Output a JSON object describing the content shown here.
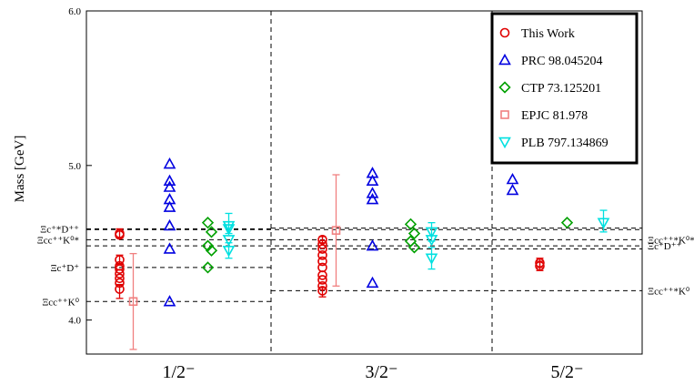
{
  "chart_data": {
    "type": "scatter",
    "ylabel": "Mass [GeV]",
    "ylim": [
      3.78,
      6.0
    ],
    "yticks": [
      {
        "value": 4.0,
        "label": "4.0"
      },
      {
        "value": 5.0,
        "label": "5.0"
      },
      {
        "value": 6.0,
        "label": "6.0"
      }
    ],
    "categories": [
      "1/2⁻",
      "3/2⁻",
      "5/2⁻"
    ],
    "legend": {
      "position": "top-right"
    },
    "thresholds": [
      {
        "value": 4.59,
        "categories": [
          0
        ],
        "label": "Ξc⁺*D⁺⁺",
        "side": "left"
      },
      {
        "value": 4.52,
        "categories": [
          0
        ],
        "label": "Ξcc⁺⁺K⁰*",
        "side": "left"
      },
      {
        "value": 4.34,
        "categories": [
          0
        ],
        "label": "Ξc⁺D⁺",
        "side": "left"
      },
      {
        "value": 4.12,
        "categories": [
          0
        ],
        "label": "Ξcc⁺⁺K⁰",
        "side": "left"
      },
      {
        "value": 4.595,
        "categories": [
          1,
          2
        ],
        "label": "",
        "side": "right"
      },
      {
        "value": 4.585,
        "categories": [
          0,
          1,
          2
        ],
        "label": "",
        "side": "right"
      },
      {
        "value": 4.52,
        "categories": [
          1,
          2
        ],
        "label": "Ξcc⁺⁺*K⁰*",
        "side": "right"
      },
      {
        "value": 4.48,
        "categories": [
          0,
          1,
          2
        ],
        "label": "Ξc⁺D⁺⁺",
        "side": "right"
      },
      {
        "value": 4.46,
        "categories": [
          1,
          2
        ],
        "label": "",
        "side": "right"
      },
      {
        "value": 4.19,
        "categories": [
          1,
          2
        ],
        "label": "Ξcc⁺⁺*K⁰",
        "side": "right"
      }
    ],
    "series": [
      {
        "name": "This Work",
        "color": "#e00000",
        "marker": "circle",
        "points": [
          {
            "cat": 0,
            "y": 4.56,
            "err": [
              0.03,
              0.03
            ]
          },
          {
            "cat": 0,
            "y": 4.55
          },
          {
            "cat": 0,
            "y": 4.39,
            "err": [
              0.03,
              0.03
            ]
          },
          {
            "cat": 0,
            "y": 4.35
          },
          {
            "cat": 0,
            "y": 4.33
          },
          {
            "cat": 0,
            "y": 4.3
          },
          {
            "cat": 0,
            "y": 4.27
          },
          {
            "cat": 0,
            "y": 4.24
          },
          {
            "cat": 0,
            "y": 4.2,
            "err": [
              0.06,
              0.03
            ]
          },
          {
            "cat": 1,
            "y": 4.52,
            "err": [
              0.02,
              0.02
            ]
          },
          {
            "cat": 1,
            "y": 4.49
          },
          {
            "cat": 1,
            "y": 4.46
          },
          {
            "cat": 1,
            "y": 4.42
          },
          {
            "cat": 1,
            "y": 4.38
          },
          {
            "cat": 1,
            "y": 4.34
          },
          {
            "cat": 1,
            "y": 4.29
          },
          {
            "cat": 1,
            "y": 4.26
          },
          {
            "cat": 1,
            "y": 4.22
          },
          {
            "cat": 1,
            "y": 4.19,
            "err": [
              0.04,
              0.02
            ]
          },
          {
            "cat": 2,
            "y": 4.37,
            "err": [
              0.03,
              0.03
            ]
          },
          {
            "cat": 2,
            "y": 4.35,
            "err": [
              0.03,
              0.03
            ]
          }
        ]
      },
      {
        "name": "PRC 98.045204",
        "color": "#0000e0",
        "marker": "triangle-up",
        "points": [
          {
            "cat": 0,
            "y": 5.01
          },
          {
            "cat": 0,
            "y": 4.9
          },
          {
            "cat": 0,
            "y": 4.86
          },
          {
            "cat": 0,
            "y": 4.78
          },
          {
            "cat": 0,
            "y": 4.73
          },
          {
            "cat": 0,
            "y": 4.61
          },
          {
            "cat": 0,
            "y": 4.46
          },
          {
            "cat": 0,
            "y": 4.12
          },
          {
            "cat": 1,
            "y": 4.95
          },
          {
            "cat": 1,
            "y": 4.9
          },
          {
            "cat": 1,
            "y": 4.82
          },
          {
            "cat": 1,
            "y": 4.78
          },
          {
            "cat": 1,
            "y": 4.48
          },
          {
            "cat": 1,
            "y": 4.24
          },
          {
            "cat": 2,
            "y": 4.91
          },
          {
            "cat": 2,
            "y": 4.84
          }
        ]
      },
      {
        "name": "CTP 73.125201",
        "color": "#00a000",
        "marker": "diamond",
        "points": [
          {
            "cat": 0,
            "y": 4.63
          },
          {
            "cat": 0,
            "y": 4.57
          },
          {
            "cat": 0,
            "y": 4.48
          },
          {
            "cat": 0,
            "y": 4.45
          },
          {
            "cat": 0,
            "y": 4.34
          },
          {
            "cat": 1,
            "y": 4.62
          },
          {
            "cat": 1,
            "y": 4.56
          },
          {
            "cat": 1,
            "y": 4.51
          },
          {
            "cat": 1,
            "y": 4.47
          },
          {
            "cat": 2,
            "y": 4.63
          }
        ]
      },
      {
        "name": "EPJC 81.978",
        "color": "#f08080",
        "marker": "square",
        "points": [
          {
            "cat": 0,
            "y": 4.12,
            "err": [
              0.31,
              0.31
            ]
          },
          {
            "cat": 1,
            "y": 4.58,
            "err": [
              0.36,
              0.36
            ]
          }
        ]
      },
      {
        "name": "PLB 797.134869",
        "color": "#00e0e0",
        "marker": "triangle-down",
        "points": [
          {
            "cat": 0,
            "y": 4.61,
            "err": [
              0.05,
              0.08
            ]
          },
          {
            "cat": 0,
            "y": 4.59
          },
          {
            "cat": 0,
            "y": 4.52
          },
          {
            "cat": 0,
            "y": 4.45,
            "err": [
              0.05,
              0.05
            ]
          },
          {
            "cat": 1,
            "y": 4.57,
            "err": [
              0.06,
              0.06
            ]
          },
          {
            "cat": 1,
            "y": 4.52
          },
          {
            "cat": 1,
            "y": 4.4,
            "err": [
              0.07,
              0.07
            ]
          },
          {
            "cat": 2,
            "y": 4.63,
            "err": [
              0.06,
              0.08
            ]
          }
        ]
      }
    ]
  }
}
